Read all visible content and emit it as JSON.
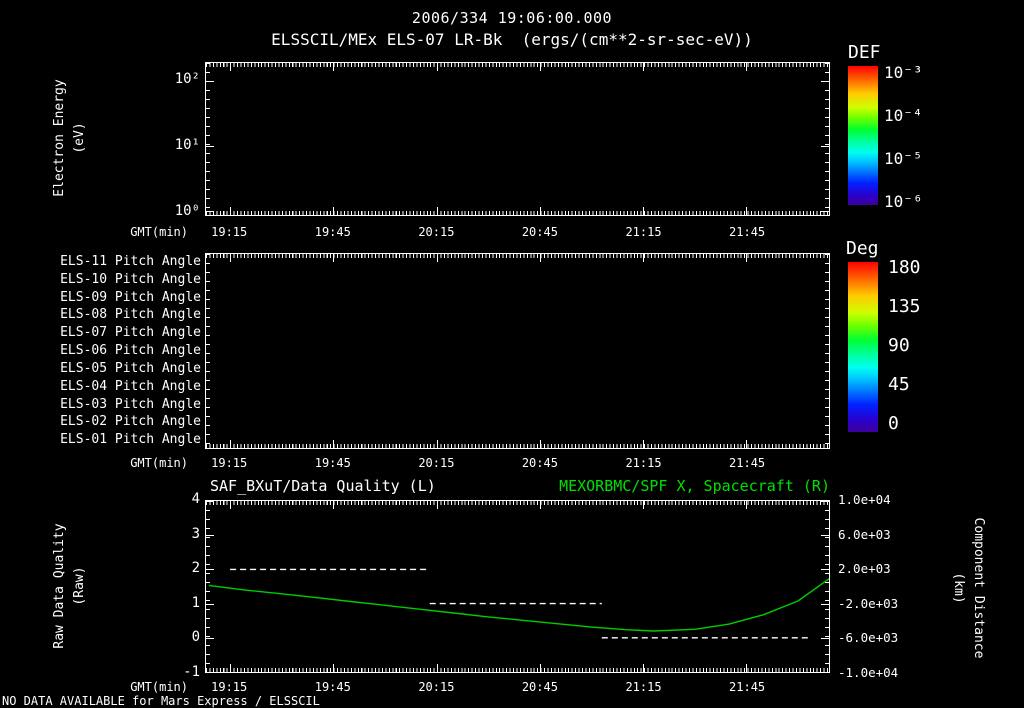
{
  "header": {
    "timestamp": "2006/334 19:06:00.000",
    "title": "ELSSCIL/MEx ELS-07 LR-Bk  (ergs/(cm**2-sr-sec-eV))"
  },
  "footer": {
    "note": "NO DATA AVAILABLE for Mars Express / ELSSCIL"
  },
  "colors": {
    "background": "#000000",
    "foreground": "#ffffff",
    "accent_green": "#00e000",
    "curve_green": "#00cc00",
    "quality_white": "#ffffff"
  },
  "time_axis": {
    "label": "GMT(min)",
    "start": "19:08",
    "end": "22:09",
    "tick_labels": [
      "19:15",
      "19:45",
      "20:15",
      "20:45",
      "21:15",
      "21:45"
    ]
  },
  "chart_data": [
    {
      "type": "heatmap",
      "title": "ELSSCIL/MEx ELS-07 LR-Bk  (ergs/(cm**2-sr-sec-eV))",
      "xlabel": "GMT(min)",
      "ylabel": "Electron Energy (eV)",
      "ylabel_lines": [
        "Electron Energy",
        "(eV)"
      ],
      "yscale": "log",
      "ylim": [
        1,
        180
      ],
      "y_ticks": [
        "10²",
        "10¹",
        "10⁰"
      ],
      "x_ticks": [
        "19:15",
        "19:45",
        "20:15",
        "20:45",
        "21:15",
        "21:45"
      ],
      "colorbar": {
        "title": "DEF",
        "tick_labels": [
          "10⁻³",
          "10⁻⁴",
          "10⁻⁵",
          "10⁻⁶"
        ]
      },
      "values": []
    },
    {
      "type": "heatmap",
      "xlabel": "GMT(min)",
      "y_categories": [
        "ELS-11 Pitch Angle",
        "ELS-10 Pitch Angle",
        "ELS-09 Pitch Angle",
        "ELS-08 Pitch Angle",
        "ELS-07 Pitch Angle",
        "ELS-06 Pitch Angle",
        "ELS-05 Pitch Angle",
        "ELS-04 Pitch Angle",
        "ELS-03 Pitch Angle",
        "ELS-02 Pitch Angle",
        "ELS-01 Pitch Angle"
      ],
      "x_ticks": [
        "19:15",
        "19:45",
        "20:15",
        "20:45",
        "21:15",
        "21:45"
      ],
      "colorbar": {
        "title": "Deg",
        "tick_labels": [
          "180",
          "135",
          "90",
          "45",
          "0"
        ]
      },
      "values": []
    },
    {
      "type": "line",
      "titles": {
        "left": "SAF_BXuT/Data Quality (L)",
        "right": "MEXORBMC/SPF X, Spacecraft (R)"
      },
      "xlabel": "GMT(min)",
      "x_ticks": [
        "19:15",
        "19:45",
        "20:15",
        "20:45",
        "21:15",
        "21:45"
      ],
      "left_axis": {
        "label": "Raw Data Quality (Raw)",
        "label_lines": [
          "Raw Data Quality",
          "(Raw)"
        ],
        "lim": [
          -1,
          4
        ],
        "ticks": [
          4,
          3,
          2,
          1,
          0,
          -1
        ]
      },
      "right_axis": {
        "label": "Component Distance (km)",
        "label_lines": [
          "Component Distance",
          "(km)"
        ],
        "lim": [
          -10000,
          10000
        ],
        "tick_labels": [
          "1.0e+04",
          "6.0e+03",
          "2.0e+03",
          "-2.0e+03",
          "-6.0e+03",
          "-1.0e+04"
        ],
        "tick_values": [
          10000,
          6000,
          2000,
          -2000,
          -6000,
          -10000
        ]
      },
      "series": [
        {
          "name": "SAF_BXuT/Data Quality",
          "axis": "left",
          "style": "dashed",
          "color": "#ffffff",
          "segments": [
            {
              "start": "19:15",
              "end": "20:13",
              "value": 2
            },
            {
              "start": "20:13",
              "end": "21:03",
              "value": 1
            },
            {
              "start": "21:03",
              "end": "22:04",
              "value": 0
            }
          ]
        },
        {
          "name": "MEXORBMC/SPF X Spacecraft",
          "axis": "right",
          "style": "solid",
          "color": "#00cc00",
          "points": [
            [
              "19:09",
              100
            ],
            [
              "19:20",
              -450
            ],
            [
              "19:30",
              -850
            ],
            [
              "19:40",
              -1300
            ],
            [
              "19:50",
              -1750
            ],
            [
              "20:00",
              -2200
            ],
            [
              "20:10",
              -2650
            ],
            [
              "20:20",
              -3100
            ],
            [
              "20:30",
              -3550
            ],
            [
              "20:40",
              -3950
            ],
            [
              "20:50",
              -4350
            ],
            [
              "21:00",
              -4750
            ],
            [
              "21:10",
              -5050
            ],
            [
              "21:18",
              -5200
            ],
            [
              "21:30",
              -5000
            ],
            [
              "21:40",
              -4400
            ],
            [
              "21:50",
              -3300
            ],
            [
              "22:00",
              -1700
            ],
            [
              "22:09",
              900
            ]
          ]
        }
      ]
    }
  ]
}
